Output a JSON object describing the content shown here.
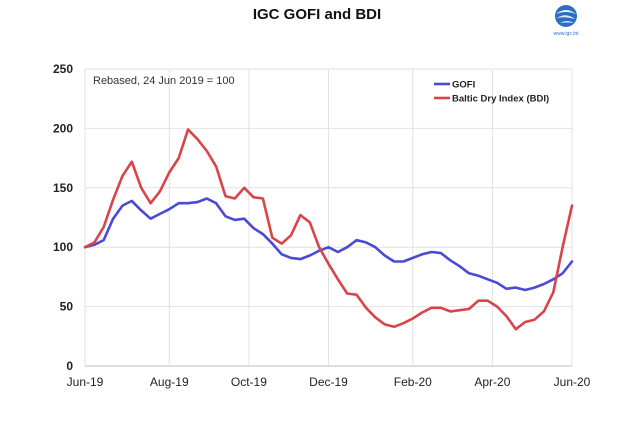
{
  "chart_data": {
    "type": "line",
    "title": "IGC GOFI and BDI",
    "annotation": "Rebased, 24 Jun 2019 = 100",
    "ylim": [
      0,
      250
    ],
    "yticks": [
      0,
      50,
      100,
      150,
      200,
      250
    ],
    "xlim": [
      0,
      52
    ],
    "xticks": [
      {
        "label": "Jun-19",
        "x": 0
      },
      {
        "label": "Aug-19",
        "x": 9
      },
      {
        "label": "Oct-19",
        "x": 17.5
      },
      {
        "label": "Dec-19",
        "x": 26
      },
      {
        "label": "Feb-20",
        "x": 35
      },
      {
        "label": "Apr-20",
        "x": 43.5
      },
      {
        "label": "Jun-20",
        "x": 52
      }
    ],
    "grid": true,
    "legend_position": "top-right",
    "series": [
      {
        "name": "GOFI",
        "color": "#4a4ad6",
        "x": [
          0,
          1,
          2,
          3,
          4,
          5,
          6,
          7,
          8,
          9,
          10,
          11,
          12,
          13,
          14,
          15,
          16,
          17,
          18,
          19,
          20,
          21,
          22,
          23,
          24,
          25,
          26,
          27,
          28,
          29,
          30,
          31,
          32,
          33,
          34,
          35,
          36,
          37,
          38,
          39,
          40,
          41,
          42,
          43,
          44,
          45,
          46,
          47,
          48,
          49,
          50,
          51,
          52
        ],
        "values": [
          100,
          102,
          106,
          124,
          135,
          139,
          131,
          124,
          128,
          132,
          137,
          137,
          138,
          141,
          137,
          126,
          123,
          124,
          116,
          111,
          103,
          94,
          91,
          90,
          93,
          97,
          100,
          96,
          100,
          106,
          104,
          100,
          93,
          88,
          88,
          91,
          94,
          96,
          95,
          89,
          84,
          78,
          76,
          73,
          70,
          65,
          66,
          64,
          66,
          69,
          73,
          78,
          88
        ]
      },
      {
        "name": "Baltic Dry Index (BDI)",
        "color": "#d9444a",
        "x": [
          0,
          1,
          2,
          3,
          4,
          5,
          6,
          7,
          8,
          9,
          10,
          11,
          12,
          13,
          14,
          15,
          16,
          17,
          18,
          19,
          20,
          21,
          22,
          23,
          24,
          25,
          26,
          27,
          28,
          29,
          30,
          31,
          32,
          33,
          34,
          35,
          36,
          37,
          38,
          39,
          40,
          41,
          42,
          43,
          44,
          45,
          46,
          47,
          48,
          49,
          50,
          51,
          52
        ],
        "values": [
          100,
          104,
          117,
          140,
          160,
          172,
          150,
          137,
          147,
          163,
          175,
          199,
          191,
          181,
          168,
          143,
          141,
          150,
          142,
          141,
          108,
          103,
          110,
          127,
          121,
          100,
          86,
          73,
          61,
          60,
          49,
          41,
          35,
          33,
          36,
          40,
          45,
          49,
          49,
          46,
          47,
          48,
          55,
          55,
          50,
          42,
          31,
          37,
          39,
          46,
          62,
          100,
          135
        ]
      }
    ]
  },
  "logo": {
    "caption": "www.igc.int"
  }
}
